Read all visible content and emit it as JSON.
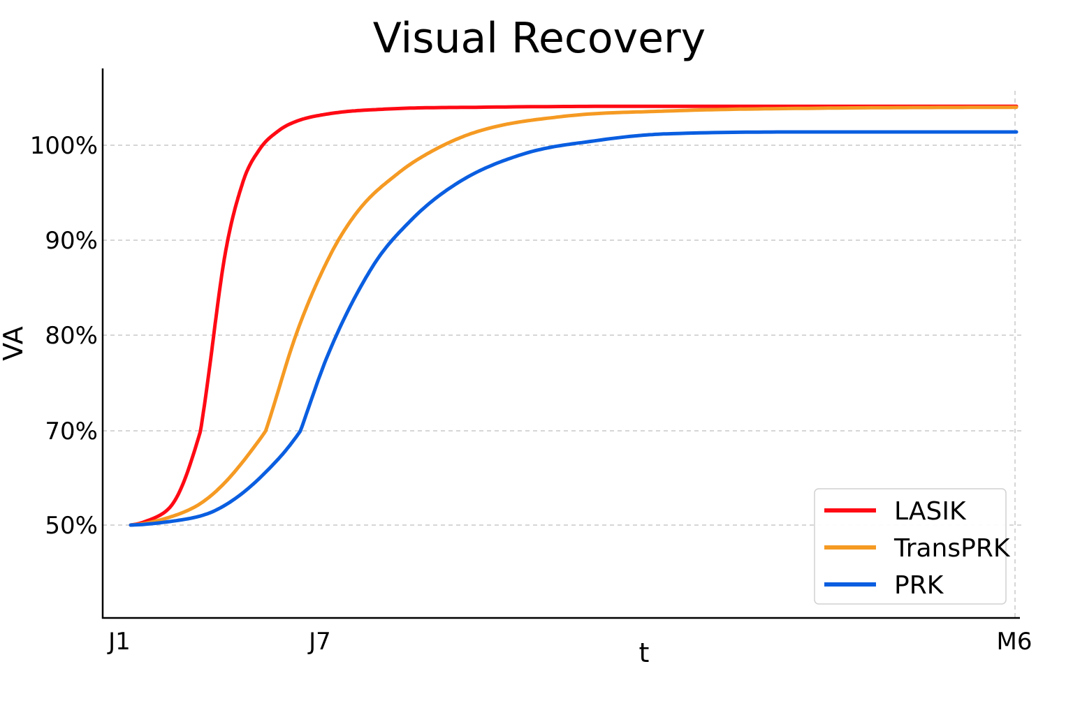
{
  "chart_data": {
    "type": "line",
    "title": "Visual Recovery",
    "xlabel": "t",
    "ylabel": "VA",
    "x_ticks": [
      "J1",
      "J7",
      "M6"
    ],
    "y_ticks": [
      "50%",
      "70%",
      "80%",
      "90%",
      "100%"
    ],
    "y_tick_values": [
      50,
      70,
      80,
      90,
      100
    ],
    "grid": "y dashed",
    "legend_position": "bottom-right",
    "series": [
      {
        "name": "LASIK",
        "color": "#ff0a14",
        "points": [
          [
            0,
            50
          ],
          [
            0.35,
            55
          ],
          [
            0.8,
            72
          ],
          [
            1.2,
            88
          ],
          [
            1.6,
            96
          ],
          [
            2.0,
            99.5
          ],
          [
            2.5,
            101.5
          ],
          [
            3.0,
            102.5
          ],
          [
            4.0,
            103.3
          ],
          [
            6.0,
            103.8
          ],
          [
            10.0,
            104.0
          ],
          [
            20.0,
            104.1
          ],
          [
            45.0,
            104.1
          ]
        ]
      },
      {
        "name": "TransPRK",
        "color": "#f59a23",
        "points": [
          [
            0,
            50
          ],
          [
            0.8,
            55
          ],
          [
            2.0,
            68
          ],
          [
            3.0,
            80
          ],
          [
            4.0,
            88
          ],
          [
            5.0,
            93
          ],
          [
            6.5,
            97
          ],
          [
            8.0,
            99.5
          ],
          [
            10.0,
            101.5
          ],
          [
            14.0,
            103
          ],
          [
            20.0,
            103.6
          ],
          [
            30.0,
            103.9
          ],
          [
            45.0,
            104.0
          ]
        ]
      },
      {
        "name": "PRK",
        "color": "#0a5ee0",
        "points": [
          [
            0,
            50
          ],
          [
            1.0,
            53
          ],
          [
            2.5,
            64
          ],
          [
            4.0,
            78
          ],
          [
            5.5,
            87
          ],
          [
            7.0,
            92
          ],
          [
            9.0,
            96
          ],
          [
            12.0,
            99
          ],
          [
            16.0,
            100.5
          ],
          [
            20.0,
            101.2
          ],
          [
            30.0,
            101.4
          ],
          [
            45.0,
            101.4
          ]
        ]
      }
    ]
  }
}
